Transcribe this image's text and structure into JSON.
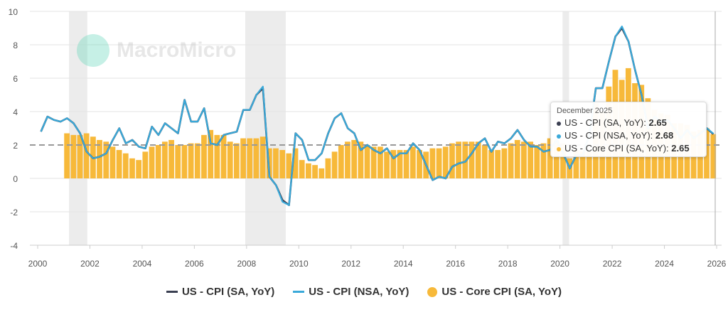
{
  "chart_data": {
    "type": "line+bar",
    "frequency": "quarterly",
    "start_year": 2000,
    "xlim": [
      2000,
      2026.2
    ],
    "ylim": [
      -4,
      10
    ],
    "yticks": [
      -4,
      -2,
      0,
      2,
      4,
      6,
      8,
      10
    ],
    "xticks": [
      "2000",
      "2002",
      "2004",
      "2006",
      "2008",
      "2010",
      "2012",
      "2014",
      "2016",
      "2018",
      "2020",
      "2022",
      "2024",
      "2026"
    ],
    "reference_line": 2,
    "recessions": [
      [
        2001.2,
        2001.9
      ],
      [
        2007.95,
        2009.5
      ],
      [
        2020.1,
        2020.35
      ]
    ],
    "series": [
      {
        "name": "US - CPI (SA, YoY)",
        "color": "#3a3f51",
        "type": "line",
        "start": 2000,
        "values": [
          2.8,
          3.7,
          3.5,
          3.4,
          3.6,
          3.3,
          2.7,
          1.6,
          1.2,
          1.3,
          1.5,
          2.3,
          3.0,
          2.1,
          2.3,
          1.9,
          1.8,
          3.1,
          2.6,
          3.3,
          3.0,
          2.7,
          4.7,
          3.4,
          3.4,
          4.2,
          2.1,
          2.0,
          2.6,
          2.7,
          2.8,
          4.1,
          4.1,
          5.0,
          5.4,
          0.1,
          -0.4,
          -1.3,
          -1.6,
          2.7,
          2.3,
          1.1,
          1.1,
          1.5,
          2.7,
          3.6,
          3.9,
          3.0,
          2.7,
          1.7,
          2.0,
          1.7,
          1.5,
          1.8,
          1.2,
          1.5,
          1.5,
          2.1,
          1.7,
          0.8,
          -0.1,
          0.1,
          0.0,
          0.7,
          0.9,
          1.0,
          1.5,
          2.1,
          2.4,
          1.6,
          2.2,
          2.1,
          2.4,
          2.9,
          2.3,
          1.9,
          1.9,
          1.6,
          1.7,
          2.3,
          1.5,
          0.6,
          1.4,
          1.4,
          2.6,
          5.4,
          5.4,
          7.0,
          8.5,
          9.0,
          8.2,
          6.5,
          5.0,
          3.0,
          3.7,
          3.4,
          3.5,
          3.0,
          2.4,
          2.9,
          2.4,
          2.7,
          3.0,
          2.65
        ]
      },
      {
        "name": "US - CPI (NSA, YoY)",
        "color": "#3aa9d9",
        "type": "line",
        "start": 2000,
        "values": [
          2.8,
          3.7,
          3.5,
          3.4,
          3.6,
          3.3,
          2.7,
          1.6,
          1.2,
          1.3,
          1.5,
          2.3,
          3.0,
          2.1,
          2.3,
          1.9,
          1.8,
          3.1,
          2.6,
          3.3,
          3.0,
          2.7,
          4.7,
          3.4,
          3.4,
          4.2,
          2.1,
          2.0,
          2.6,
          2.7,
          2.8,
          4.1,
          4.1,
          5.0,
          5.5,
          0.1,
          -0.4,
          -1.4,
          -1.6,
          2.7,
          2.3,
          1.1,
          1.1,
          1.5,
          2.7,
          3.6,
          3.9,
          3.0,
          2.7,
          1.7,
          2.0,
          1.7,
          1.5,
          1.8,
          1.2,
          1.5,
          1.5,
          2.1,
          1.7,
          0.8,
          -0.1,
          0.1,
          0.0,
          0.7,
          0.9,
          1.0,
          1.5,
          2.1,
          2.4,
          1.6,
          2.2,
          2.1,
          2.4,
          2.9,
          2.3,
          1.9,
          1.9,
          1.6,
          1.7,
          2.3,
          1.5,
          0.6,
          1.4,
          1.4,
          2.6,
          5.4,
          5.4,
          7.0,
          8.5,
          9.1,
          8.2,
          6.5,
          5.0,
          3.0,
          3.7,
          3.4,
          3.5,
          3.0,
          2.4,
          2.9,
          2.4,
          2.7,
          3.0,
          2.68
        ]
      },
      {
        "name": "US - Core CPI (SA, YoY)",
        "color": "#f7b93a",
        "type": "bar",
        "start": 2001,
        "values": [
          2.7,
          2.6,
          2.6,
          2.7,
          2.5,
          2.3,
          2.2,
          1.9,
          1.7,
          1.5,
          1.2,
          1.1,
          1.6,
          1.9,
          2.0,
          2.2,
          2.3,
          2.0,
          2.0,
          2.1,
          2.1,
          2.6,
          2.9,
          2.6,
          2.6,
          2.2,
          2.1,
          2.4,
          2.4,
          2.4,
          2.5,
          1.8,
          1.8,
          1.7,
          1.5,
          1.8,
          1.1,
          0.9,
          0.8,
          0.6,
          1.2,
          1.6,
          2.0,
          2.2,
          2.3,
          2.2,
          2.0,
          1.9,
          1.9,
          1.6,
          1.7,
          1.7,
          1.7,
          1.9,
          1.7,
          1.6,
          1.8,
          1.8,
          1.9,
          2.1,
          2.2,
          2.2,
          2.2,
          2.2,
          2.0,
          1.7,
          1.7,
          1.8,
          2.1,
          2.3,
          2.2,
          2.2,
          2.0,
          2.1,
          2.4,
          2.3,
          2.1,
          1.2,
          1.7,
          1.6,
          1.6,
          4.5,
          4.0,
          5.5,
          6.5,
          5.9,
          6.6,
          5.7,
          5.6,
          4.8,
          4.1,
          3.9,
          3.8,
          3.3,
          3.3,
          3.2,
          2.8,
          2.9,
          3.0,
          2.65
        ]
      }
    ]
  },
  "tooltip": {
    "date": "December 2025",
    "rows": [
      {
        "label": "US - CPI (SA, YoY): ",
        "value": "2.65",
        "color": "#3a3f51"
      },
      {
        "label": "US - CPI (NSA, YoY): ",
        "value": "2.68",
        "color": "#3aa9d9"
      },
      {
        "label": "US - Core CPI (SA, YoY): ",
        "value": "2.65",
        "color": "#f7b93a"
      }
    ]
  },
  "watermark": "MacroMicro"
}
